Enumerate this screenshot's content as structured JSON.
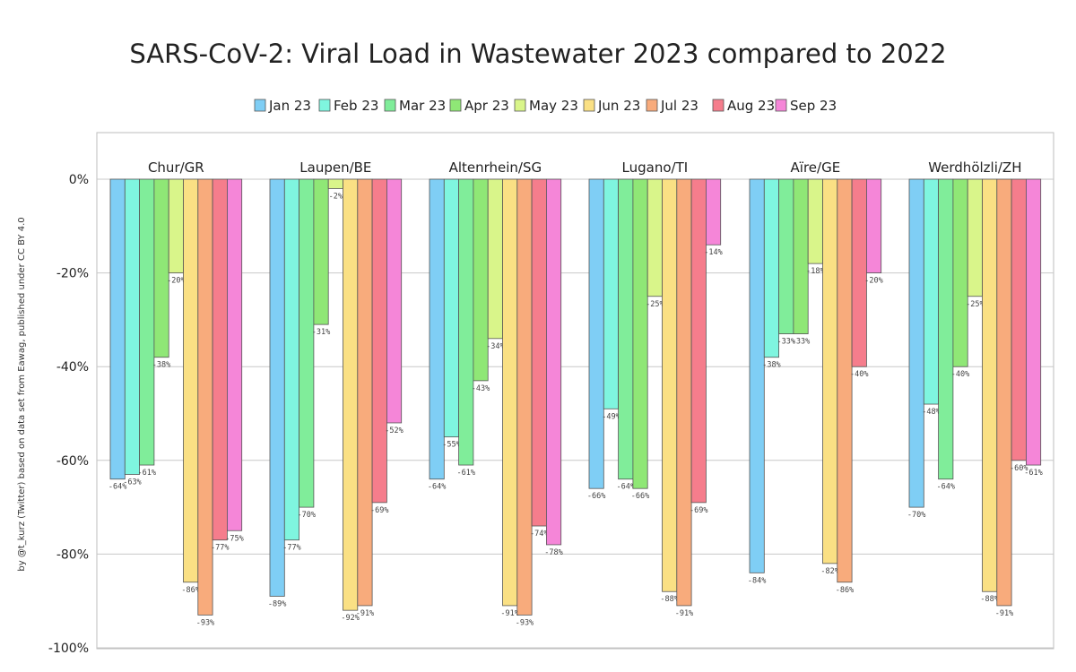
{
  "chart_data": {
    "type": "bar",
    "title": "SARS-CoV-2: Viral Load in Wastewater 2023 compared to 2022",
    "credit": "by @t_kurz (Twitter) based on data set from Eawag, published under CC BY 4.0",
    "ylim": [
      -100,
      0
    ],
    "yticks": [
      0,
      -20,
      -40,
      -60,
      -80,
      -100
    ],
    "ytick_labels": [
      "0%",
      "-20%",
      "-40%",
      "-60%",
      "-80%",
      "-100%"
    ],
    "grid": true,
    "legend_position": "top",
    "categories": [
      "Chur/GR",
      "Laupen/BE",
      "Altenrhein/SG",
      "Lugano/TI",
      "Aïre/GE",
      "Werdhölzli/ZH"
    ],
    "series": [
      {
        "name": "Jan 23",
        "color": "#7fcef5",
        "values": [
          -64,
          -89,
          -64,
          -66,
          -84,
          -70
        ],
        "labels": [
          "-64%",
          "-89%",
          "-64%",
          "-66%",
          "-84%",
          "-70%"
        ]
      },
      {
        "name": "Feb 23",
        "color": "#7ff5df",
        "values": [
          -63,
          -77,
          -55,
          -49,
          -38,
          -48
        ],
        "labels": [
          "-63%",
          "-77%",
          "-55%",
          "-49%",
          "-38%",
          "-48%"
        ]
      },
      {
        "name": "Mar 23",
        "color": "#80ed9a",
        "values": [
          -61,
          -70,
          -61,
          -64,
          -33,
          -64
        ],
        "labels": [
          "-61%",
          "-70%",
          "-61%",
          "-64%",
          "-33%",
          "-64%"
        ]
      },
      {
        "name": "Apr 23",
        "color": "#8fe776",
        "values": [
          -38,
          -31,
          -43,
          -66,
          -33,
          -40
        ],
        "labels": [
          "-38%",
          "-31%",
          "-43%",
          "-66%",
          "-33%",
          "-40%"
        ]
      },
      {
        "name": "May 23",
        "color": "#d9f58a",
        "values": [
          -20,
          -2,
          -34,
          -25,
          -18,
          -25
        ],
        "labels": [
          "-20%",
          "-2%",
          "-34%",
          "-25%",
          "-18%",
          "-25%"
        ]
      },
      {
        "name": "Jun 23",
        "color": "#fae084",
        "values": [
          -86,
          -92,
          -91,
          -88,
          -82,
          -88
        ],
        "labels": [
          "-86%",
          "-92%",
          "-91%",
          "-88%",
          "-82%",
          "-88%"
        ]
      },
      {
        "name": "Jul 23",
        "color": "#f8ab7c",
        "values": [
          -93,
          -91,
          -93,
          -91,
          -86,
          -91
        ],
        "labels": [
          "-93%",
          "-91%",
          "-93%",
          "-91%",
          "-86%",
          "-91%"
        ]
      },
      {
        "name": "Aug 23",
        "color": "#f57d8c",
        "values": [
          -77,
          -69,
          -74,
          -69,
          -40,
          -60
        ],
        "labels": [
          "-77%",
          "-69%",
          "-74%",
          "-69%",
          "-40%",
          "-60%"
        ]
      },
      {
        "name": "Sep 23",
        "color": "#f586d8",
        "values": [
          -75,
          -52,
          -78,
          -14,
          -20,
          -61
        ],
        "labels": [
          "-75%",
          "-52%",
          "-78%",
          "-14%",
          "-20%",
          "-61%"
        ]
      }
    ]
  }
}
